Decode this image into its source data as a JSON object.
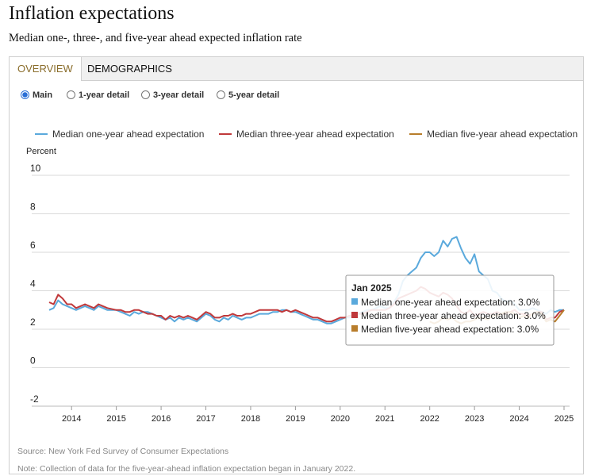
{
  "header": {
    "title": "Inflation expectations",
    "subtitle": "Median one-, three-, and five-year ahead expected inflation rate"
  },
  "tabs": [
    {
      "label": "OVERVIEW",
      "active": true
    },
    {
      "label": "DEMOGRAPHICS",
      "active": false
    }
  ],
  "radios": [
    {
      "label": "Main",
      "selected": true
    },
    {
      "label": "1-year detail",
      "selected": false
    },
    {
      "label": "3-year detail",
      "selected": false
    },
    {
      "label": "5-year detail",
      "selected": false
    }
  ],
  "chart_data": {
    "type": "line",
    "ylabel": "Percent",
    "ylim": [
      -2,
      10
    ],
    "yticks": [
      -2,
      0,
      2,
      4,
      6,
      8,
      10
    ],
    "xticks": [
      "2014",
      "2015",
      "2016",
      "2017",
      "2018",
      "2019",
      "2020",
      "2021",
      "2022",
      "2023",
      "2024",
      "2025"
    ],
    "xrange": [
      2013.5,
      2025.0
    ],
    "legend_position": "top",
    "series": [
      {
        "name": "Median one-year ahead expectation",
        "color": "#5aa9dc",
        "points": [
          [
            2013.5,
            3.0
          ],
          [
            2013.6,
            3.1
          ],
          [
            2013.7,
            3.5
          ],
          [
            2013.8,
            3.3
          ],
          [
            2013.9,
            3.2
          ],
          [
            2014.0,
            3.1
          ],
          [
            2014.1,
            3.0
          ],
          [
            2014.2,
            3.1
          ],
          [
            2014.3,
            3.2
          ],
          [
            2014.4,
            3.1
          ],
          [
            2014.5,
            3.0
          ],
          [
            2014.6,
            3.2
          ],
          [
            2014.7,
            3.1
          ],
          [
            2014.8,
            3.0
          ],
          [
            2015.0,
            3.0
          ],
          [
            2015.1,
            2.9
          ],
          [
            2015.2,
            2.8
          ],
          [
            2015.3,
            2.7
          ],
          [
            2015.4,
            2.9
          ],
          [
            2015.5,
            2.8
          ],
          [
            2015.6,
            2.9
          ],
          [
            2015.7,
            2.9
          ],
          [
            2015.8,
            2.8
          ],
          [
            2015.9,
            2.7
          ],
          [
            2016.0,
            2.6
          ],
          [
            2016.1,
            2.5
          ],
          [
            2016.2,
            2.6
          ],
          [
            2016.3,
            2.4
          ],
          [
            2016.4,
            2.6
          ],
          [
            2016.5,
            2.5
          ],
          [
            2016.6,
            2.6
          ],
          [
            2016.7,
            2.5
          ],
          [
            2016.8,
            2.4
          ],
          [
            2016.9,
            2.6
          ],
          [
            2017.0,
            2.8
          ],
          [
            2017.1,
            2.7
          ],
          [
            2017.2,
            2.5
          ],
          [
            2017.3,
            2.4
          ],
          [
            2017.4,
            2.6
          ],
          [
            2017.5,
            2.5
          ],
          [
            2017.6,
            2.7
          ],
          [
            2017.7,
            2.6
          ],
          [
            2017.8,
            2.5
          ],
          [
            2017.9,
            2.6
          ],
          [
            2018.0,
            2.6
          ],
          [
            2018.1,
            2.7
          ],
          [
            2018.2,
            2.8
          ],
          [
            2018.3,
            2.8
          ],
          [
            2018.4,
            2.8
          ],
          [
            2018.5,
            2.9
          ],
          [
            2018.6,
            2.9
          ],
          [
            2018.7,
            3.0
          ],
          [
            2018.8,
            3.0
          ],
          [
            2018.9,
            2.9
          ],
          [
            2019.0,
            2.9
          ],
          [
            2019.1,
            2.8
          ],
          [
            2019.2,
            2.7
          ],
          [
            2019.3,
            2.6
          ],
          [
            2019.4,
            2.5
          ],
          [
            2019.5,
            2.5
          ],
          [
            2019.6,
            2.4
          ],
          [
            2019.7,
            2.3
          ],
          [
            2019.8,
            2.3
          ],
          [
            2019.9,
            2.4
          ],
          [
            2020.0,
            2.5
          ],
          [
            2020.1,
            2.6
          ],
          [
            2020.2,
            2.6
          ],
          [
            2020.3,
            2.7
          ],
          [
            2020.4,
            2.8
          ],
          [
            2020.5,
            2.9
          ],
          [
            2020.6,
            3.0
          ],
          [
            2020.7,
            3.0
          ],
          [
            2020.8,
            3.1
          ],
          [
            2020.9,
            3.2
          ],
          [
            2021.0,
            3.1
          ],
          [
            2021.1,
            3.1
          ],
          [
            2021.2,
            3.4
          ],
          [
            2021.3,
            3.8
          ],
          [
            2021.4,
            4.5
          ],
          [
            2021.5,
            4.8
          ],
          [
            2021.6,
            5.0
          ],
          [
            2021.7,
            5.2
          ],
          [
            2021.8,
            5.7
          ],
          [
            2021.9,
            6.0
          ],
          [
            2022.0,
            6.0
          ],
          [
            2022.1,
            5.8
          ],
          [
            2022.2,
            6.0
          ],
          [
            2022.3,
            6.6
          ],
          [
            2022.4,
            6.3
          ],
          [
            2022.5,
            6.7
          ],
          [
            2022.6,
            6.8
          ],
          [
            2022.7,
            6.2
          ],
          [
            2022.8,
            5.7
          ],
          [
            2022.9,
            5.4
          ],
          [
            2023.0,
            5.9
          ],
          [
            2023.1,
            5.0
          ],
          [
            2023.2,
            4.8
          ],
          [
            2023.3,
            4.6
          ],
          [
            2023.4,
            4.0
          ],
          [
            2023.5,
            3.9
          ],
          [
            2023.6,
            3.6
          ],
          [
            2023.7,
            3.4
          ],
          [
            2023.8,
            3.5
          ],
          [
            2023.9,
            3.3
          ],
          [
            2024.0,
            3.0
          ],
          [
            2024.1,
            3.0
          ],
          [
            2024.2,
            3.0
          ],
          [
            2024.3,
            3.1
          ],
          [
            2024.4,
            3.0
          ],
          [
            2024.5,
            2.9
          ],
          [
            2024.6,
            2.8
          ],
          [
            2024.7,
            3.0
          ],
          [
            2024.8,
            2.9
          ],
          [
            2024.9,
            3.0
          ],
          [
            2025.0,
            3.0
          ]
        ]
      },
      {
        "name": "Median three-year ahead expectation",
        "color": "#c0393b",
        "points": [
          [
            2013.5,
            3.4
          ],
          [
            2013.6,
            3.3
          ],
          [
            2013.7,
            3.8
          ],
          [
            2013.8,
            3.6
          ],
          [
            2013.9,
            3.3
          ],
          [
            2014.0,
            3.3
          ],
          [
            2014.1,
            3.1
          ],
          [
            2014.2,
            3.2
          ],
          [
            2014.3,
            3.3
          ],
          [
            2014.4,
            3.2
          ],
          [
            2014.5,
            3.1
          ],
          [
            2014.6,
            3.3
          ],
          [
            2014.7,
            3.2
          ],
          [
            2014.8,
            3.1
          ],
          [
            2015.0,
            3.0
          ],
          [
            2015.1,
            3.0
          ],
          [
            2015.2,
            2.9
          ],
          [
            2015.3,
            2.9
          ],
          [
            2015.4,
            3.0
          ],
          [
            2015.5,
            3.0
          ],
          [
            2015.6,
            2.9
          ],
          [
            2015.7,
            2.8
          ],
          [
            2015.8,
            2.8
          ],
          [
            2015.9,
            2.7
          ],
          [
            2016.0,
            2.7
          ],
          [
            2016.1,
            2.5
          ],
          [
            2016.2,
            2.7
          ],
          [
            2016.3,
            2.6
          ],
          [
            2016.4,
            2.7
          ],
          [
            2016.5,
            2.6
          ],
          [
            2016.6,
            2.7
          ],
          [
            2016.7,
            2.6
          ],
          [
            2016.8,
            2.5
          ],
          [
            2016.9,
            2.7
          ],
          [
            2017.0,
            2.9
          ],
          [
            2017.1,
            2.8
          ],
          [
            2017.2,
            2.6
          ],
          [
            2017.3,
            2.6
          ],
          [
            2017.4,
            2.7
          ],
          [
            2017.5,
            2.7
          ],
          [
            2017.6,
            2.8
          ],
          [
            2017.7,
            2.7
          ],
          [
            2017.8,
            2.7
          ],
          [
            2017.9,
            2.8
          ],
          [
            2018.0,
            2.8
          ],
          [
            2018.1,
            2.9
          ],
          [
            2018.2,
            3.0
          ],
          [
            2018.3,
            3.0
          ],
          [
            2018.4,
            3.0
          ],
          [
            2018.5,
            3.0
          ],
          [
            2018.6,
            3.0
          ],
          [
            2018.7,
            2.9
          ],
          [
            2018.8,
            3.0
          ],
          [
            2018.9,
            2.9
          ],
          [
            2019.0,
            3.0
          ],
          [
            2019.1,
            2.9
          ],
          [
            2019.2,
            2.8
          ],
          [
            2019.3,
            2.7
          ],
          [
            2019.4,
            2.6
          ],
          [
            2019.5,
            2.6
          ],
          [
            2019.6,
            2.5
          ],
          [
            2019.7,
            2.4
          ],
          [
            2019.8,
            2.4
          ],
          [
            2019.9,
            2.5
          ],
          [
            2020.0,
            2.6
          ],
          [
            2020.1,
            2.6
          ],
          [
            2020.2,
            2.7
          ],
          [
            2020.3,
            2.7
          ],
          [
            2020.4,
            2.8
          ],
          [
            2020.5,
            2.8
          ],
          [
            2020.6,
            2.9
          ],
          [
            2020.7,
            3.0
          ],
          [
            2020.8,
            3.0
          ],
          [
            2020.9,
            3.0
          ],
          [
            2021.0,
            3.0
          ],
          [
            2021.1,
            3.1
          ],
          [
            2021.2,
            3.3
          ],
          [
            2021.3,
            3.6
          ],
          [
            2021.4,
            3.7
          ],
          [
            2021.5,
            3.8
          ],
          [
            2021.6,
            3.9
          ],
          [
            2021.7,
            4.0
          ],
          [
            2021.8,
            4.2
          ],
          [
            2021.9,
            4.1
          ],
          [
            2022.0,
            3.9
          ],
          [
            2022.1,
            3.8
          ],
          [
            2022.2,
            3.7
          ],
          [
            2022.3,
            3.9
          ],
          [
            2022.4,
            3.8
          ],
          [
            2022.5,
            3.6
          ],
          [
            2022.6,
            3.2
          ],
          [
            2022.7,
            2.9
          ],
          [
            2022.8,
            2.8
          ],
          [
            2022.9,
            3.0
          ],
          [
            2023.0,
            2.7
          ],
          [
            2023.1,
            2.8
          ],
          [
            2023.2,
            2.9
          ],
          [
            2023.3,
            2.8
          ],
          [
            2023.4,
            2.8
          ],
          [
            2023.5,
            2.9
          ],
          [
            2023.6,
            2.8
          ],
          [
            2023.7,
            2.8
          ],
          [
            2023.8,
            2.9
          ],
          [
            2023.9,
            3.0
          ],
          [
            2024.0,
            2.8
          ],
          [
            2024.1,
            2.8
          ],
          [
            2024.2,
            2.7
          ],
          [
            2024.3,
            2.8
          ],
          [
            2024.4,
            2.9
          ],
          [
            2024.5,
            2.9
          ],
          [
            2024.6,
            2.5
          ],
          [
            2024.7,
            2.6
          ],
          [
            2024.8,
            2.6
          ],
          [
            2024.9,
            2.9
          ],
          [
            2025.0,
            3.0
          ]
        ]
      },
      {
        "name": "Median five-year ahead expectation",
        "color": "#b87d2b",
        "points": [
          [
            2022.0,
            2.4
          ],
          [
            2022.1,
            2.3
          ],
          [
            2022.2,
            2.4
          ],
          [
            2022.3,
            2.6
          ],
          [
            2022.4,
            2.5
          ],
          [
            2022.5,
            2.6
          ],
          [
            2022.6,
            2.4
          ],
          [
            2022.7,
            2.3
          ],
          [
            2022.8,
            2.4
          ],
          [
            2022.9,
            2.4
          ],
          [
            2023.0,
            2.5
          ],
          [
            2023.1,
            2.6
          ],
          [
            2023.2,
            2.6
          ],
          [
            2023.3,
            2.5
          ],
          [
            2023.4,
            2.7
          ],
          [
            2023.5,
            2.7
          ],
          [
            2023.6,
            2.8
          ],
          [
            2023.7,
            2.9
          ],
          [
            2023.8,
            2.9
          ],
          [
            2023.9,
            2.8
          ],
          [
            2024.0,
            2.6
          ],
          [
            2024.1,
            2.7
          ],
          [
            2024.2,
            2.6
          ],
          [
            2024.3,
            2.8
          ],
          [
            2024.4,
            2.9
          ],
          [
            2024.5,
            2.8
          ],
          [
            2024.6,
            2.4
          ],
          [
            2024.7,
            2.5
          ],
          [
            2024.8,
            2.4
          ],
          [
            2024.9,
            2.7
          ],
          [
            2025.0,
            3.0
          ]
        ]
      }
    ],
    "tooltip": {
      "title": "Jan 2025",
      "items": [
        {
          "label": "Median one-year ahead expectation: 3.0%",
          "color": "#5aa9dc"
        },
        {
          "label": "Median three-year ahead expectation: 3.0%",
          "color": "#c0393b"
        },
        {
          "label": "Median five-year ahead expectation: 3.0%",
          "color": "#b87d2b"
        }
      ]
    }
  },
  "footer": {
    "source": "Source: New York Fed Survey of Consumer Expectations",
    "note": "Note: Collection of data for the five-year-ahead inflation expectation began in January 2022."
  }
}
